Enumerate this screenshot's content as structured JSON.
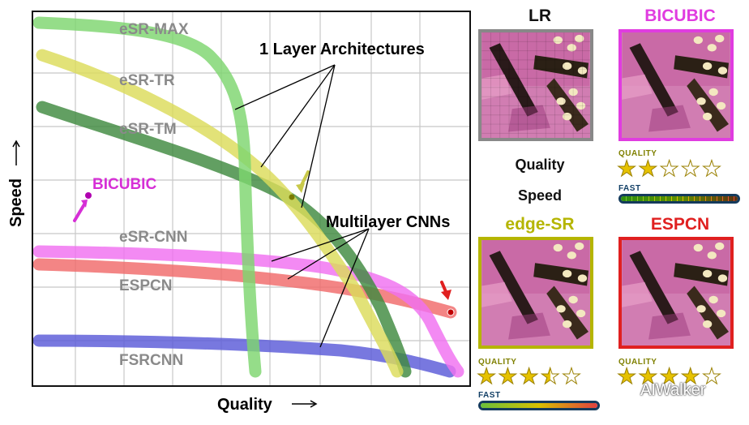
{
  "chart_data": {
    "type": "line",
    "xlabel": "Quality",
    "ylabel": "Speed",
    "series": [
      {
        "name": "eSR-MAX",
        "color": "#7ed66f"
      },
      {
        "name": "eSR-TR",
        "color": "#dcdc5a"
      },
      {
        "name": "eSR-TM",
        "color": "#3f8a3f"
      },
      {
        "name": "eSR-CNN",
        "color": "#f070f0"
      },
      {
        "name": "ESPCN",
        "color": "#f06a6a"
      },
      {
        "name": "FSRCNN",
        "color": "#5a5ad8"
      }
    ],
    "points": [
      {
        "name": "BICUBIC",
        "color": "#d62fd6"
      }
    ],
    "annotations": [
      "1 Layer Architectures",
      "Multilayer CNNs"
    ],
    "grid": true
  },
  "panels": {
    "lr": {
      "title": "LR",
      "border": "#888888"
    },
    "bicubic": {
      "title": "BICUBIC",
      "title_color": "#e03ce0",
      "border": "#e03ce0",
      "rating": 2
    },
    "edgesr": {
      "title": "edge-SR",
      "title_color": "#b5b500",
      "border": "#b5b500",
      "rating": 3.5
    },
    "espcn": {
      "title": "ESPCN",
      "title_color": "#e02020",
      "border": "#e02020",
      "rating": 4
    }
  },
  "legend_text": {
    "quality": "Quality",
    "speed": "Speed"
  },
  "quality_label": "QUALITY",
  "fast_label": "FAST",
  "watermark": "AIWalker"
}
